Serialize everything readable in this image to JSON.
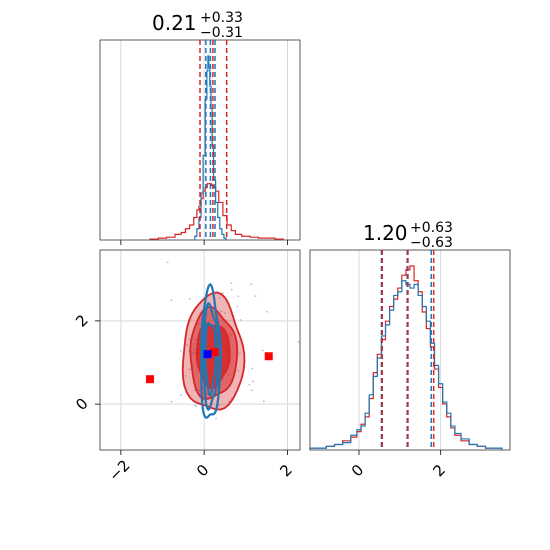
{
  "figure": {
    "type": "corner-plot",
    "parameters": [
      {
        "title_main": "0.21",
        "title_plus": "+0.33",
        "title_minus": "−0.31"
      },
      {
        "title_main": "1.20",
        "title_plus": "+0.63",
        "title_minus": "−0.63"
      }
    ],
    "colors": {
      "red": "#d62728",
      "blue": "#1f77b4",
      "marker_blue": "#0000ff",
      "marker_red": "#ff0000"
    }
  },
  "chart_data": [
    {
      "type": "histogram",
      "panel": "p1-marginal",
      "xlim": [
        -2.5,
        2.3
      ],
      "xticks": [
        -2,
        0,
        2
      ],
      "grid": true,
      "series": [
        {
          "color": "red",
          "bins": {
            "x": [
              -1.2,
              -1.0,
              -0.8,
              -0.6,
              -0.5,
              -0.4,
              -0.3,
              -0.2,
              -0.15,
              -0.1,
              -0.05,
              0,
              0.05,
              0.1,
              0.15,
              0.2,
              0.25,
              0.3,
              0.4,
              0.5,
              0.6,
              0.7,
              0.8,
              1.0,
              1.2,
              1.4,
              1.6,
              1.8
            ],
            "y": [
              0.005,
              0.01,
              0.015,
              0.03,
              0.04,
              0.06,
              0.08,
              0.12,
              0.16,
              0.18,
              0.22,
              0.26,
              0.28,
              0.3,
              0.3,
              0.29,
              0.28,
              0.26,
              0.2,
              0.13,
              0.08,
              0.05,
              0.03,
              0.02,
              0.015,
              0.01,
              0.01,
              0.005
            ]
          }
        },
        {
          "color": "blue",
          "bins": {
            "x": [
              -0.2,
              -0.15,
              -0.1,
              -0.05,
              0,
              0.05,
              0.08,
              0.1,
              0.12,
              0.15,
              0.18,
              0.2,
              0.25,
              0.3,
              0.35,
              0.4,
              0.45,
              0.5
            ],
            "y": [
              0.02,
              0.06,
              0.12,
              0.25,
              0.45,
              0.75,
              0.9,
              0.98,
              0.92,
              0.82,
              0.7,
              0.5,
              0.32,
              0.2,
              0.12,
              0.06,
              0.03,
              0.01
            ]
          }
        }
      ],
      "quantiles": {
        "red": [
          -0.1,
          0.21,
          0.54
        ],
        "blue": [
          0.04,
          0.15,
          0.26
        ]
      }
    },
    {
      "type": "histogram",
      "panel": "p2-marginal",
      "xlim": [
        -1.2,
        3.7
      ],
      "xticks": [
        0,
        2
      ],
      "grid": true,
      "series": [
        {
          "color": "red",
          "bins": {
            "x": [
              -1.1,
              -0.9,
              -0.7,
              -0.5,
              -0.3,
              -0.1,
              0.0,
              0.1,
              0.2,
              0.3,
              0.4,
              0.5,
              0.6,
              0.7,
              0.8,
              0.9,
              1.0,
              1.1,
              1.2,
              1.3,
              1.4,
              1.5,
              1.6,
              1.7,
              1.8,
              1.9,
              2.0,
              2.1,
              2.2,
              2.3,
              2.4,
              2.6,
              2.8,
              3.0,
              3.2,
              3.4
            ],
            "y": [
              0.01,
              0.01,
              0.02,
              0.03,
              0.05,
              0.07,
              0.1,
              0.14,
              0.18,
              0.28,
              0.42,
              0.52,
              0.6,
              0.7,
              0.78,
              0.82,
              0.88,
              0.95,
              0.98,
              1.0,
              0.92,
              0.86,
              0.75,
              0.66,
              0.56,
              0.44,
              0.34,
              0.25,
              0.18,
              0.12,
              0.08,
              0.05,
              0.03,
              0.02,
              0.01,
              0.01
            ]
          }
        },
        {
          "color": "blue",
          "bins": {
            "x": [
              -1.1,
              -0.9,
              -0.7,
              -0.5,
              -0.3,
              -0.1,
              0.0,
              0.1,
              0.2,
              0.3,
              0.4,
              0.5,
              0.6,
              0.7,
              0.8,
              0.9,
              1.0,
              1.1,
              1.2,
              1.3,
              1.4,
              1.5,
              1.6,
              1.7,
              1.8,
              1.9,
              2.0,
              2.1,
              2.2,
              2.3,
              2.4,
              2.6,
              2.8,
              3.0,
              3.2,
              3.4
            ],
            "y": [
              0.01,
              0.01,
              0.02,
              0.03,
              0.04,
              0.08,
              0.11,
              0.13,
              0.2,
              0.3,
              0.4,
              0.5,
              0.62,
              0.68,
              0.76,
              0.84,
              0.86,
              0.92,
              0.9,
              0.88,
              0.9,
              0.84,
              0.78,
              0.7,
              0.58,
              0.46,
              0.36,
              0.26,
              0.2,
              0.13,
              0.09,
              0.06,
              0.03,
              0.02,
              0.01,
              0.01
            ]
          }
        }
      ],
      "quantiles": {
        "red": [
          0.57,
          1.2,
          1.83
        ],
        "blue": [
          0.55,
          1.18,
          1.77
        ]
      }
    },
    {
      "type": "contour-2d",
      "panel": "p1-vs-p2",
      "xlim": [
        -2.5,
        2.3
      ],
      "ylim": [
        -1.1,
        3.7
      ],
      "xticks": [
        -2,
        0,
        2
      ],
      "yticks": [
        0,
        2
      ],
      "grid": true,
      "red_contours": {
        "center": [
          0.21,
          1.2
        ],
        "sigma": [
          0.33,
          0.63
        ],
        "levels": [
          2.2,
          1.7,
          1.2
        ],
        "fill_opacity": [
          0.35,
          0.55,
          0.85
        ]
      },
      "blue_contours": {
        "center": [
          0.15,
          1.15
        ],
        "sigma": [
          0.09,
          0.6
        ],
        "levels": [
          2.6,
          2.0,
          1.4
        ]
      },
      "markers": [
        {
          "color": "marker_red",
          "x": -1.3,
          "y": 0.6
        },
        {
          "color": "marker_red",
          "x": 1.55,
          "y": 1.15
        },
        {
          "color": "marker_red",
          "x": 0.25,
          "y": 1.25
        },
        {
          "color": "marker_blue",
          "x": 0.08,
          "y": 1.2
        }
      ]
    }
  ]
}
